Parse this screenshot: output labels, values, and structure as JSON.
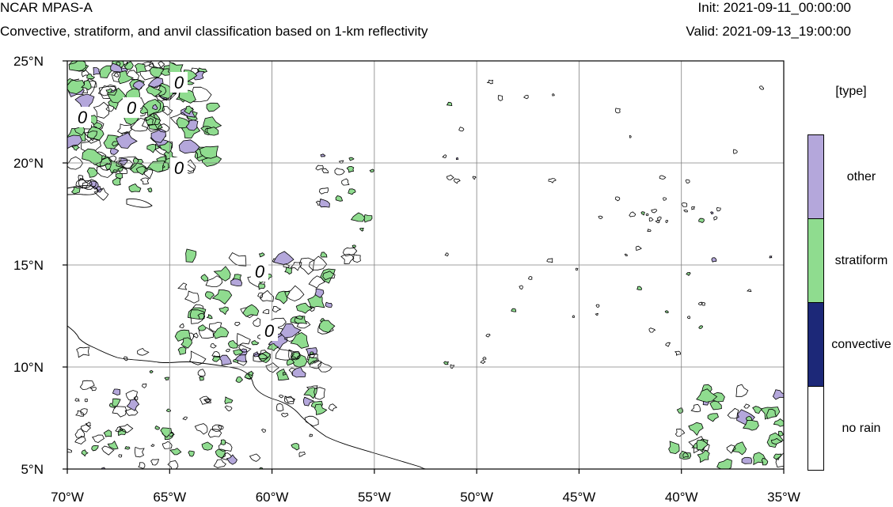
{
  "header": {
    "title": "NCAR MPAS-A",
    "subtitle": "Convective, stratiform, and anvil classification based on 1-km reflectivity",
    "init": "Init: 2021-09-11_00:00:00",
    "valid": "Valid: 2021-09-13_19:00:00"
  },
  "map": {
    "lon_range": [
      -70,
      -35
    ],
    "lat_range": [
      5,
      25
    ],
    "lon_ticks": [
      {
        "value": -70,
        "label": "70°W"
      },
      {
        "value": -65,
        "label": "65°W"
      },
      {
        "value": -60,
        "label": "60°W"
      },
      {
        "value": -55,
        "label": "55°W"
      },
      {
        "value": -50,
        "label": "50°W"
      },
      {
        "value": -45,
        "label": "45°W"
      },
      {
        "value": -40,
        "label": "40°W"
      },
      {
        "value": -35,
        "label": "35°W"
      }
    ],
    "lat_ticks": [
      {
        "value": 25,
        "label": "25°N"
      },
      {
        "value": 20,
        "label": "20°N"
      },
      {
        "value": 15,
        "label": "15°N"
      },
      {
        "value": 10,
        "label": "10°N"
      },
      {
        "value": 5,
        "label": "5°N"
      }
    ],
    "gridlines": true,
    "contour_labels": [
      "0",
      "0",
      "0",
      "0",
      "0",
      "0"
    ]
  },
  "legend": {
    "title": "[type]",
    "items": [
      {
        "label": "other",
        "color": "#b4a7db"
      },
      {
        "label": "stratiform",
        "color": "#8fdc8f"
      },
      {
        "label": "convective",
        "color": "#1c2878"
      },
      {
        "label": "no rain",
        "color": "#ffffff"
      }
    ]
  },
  "colors": {
    "other": "#b4a7db",
    "stratiform": "#8fdc8f",
    "convective": "#1c2878",
    "no_rain": "#ffffff",
    "grid": "#808080",
    "coast": "#000000"
  }
}
